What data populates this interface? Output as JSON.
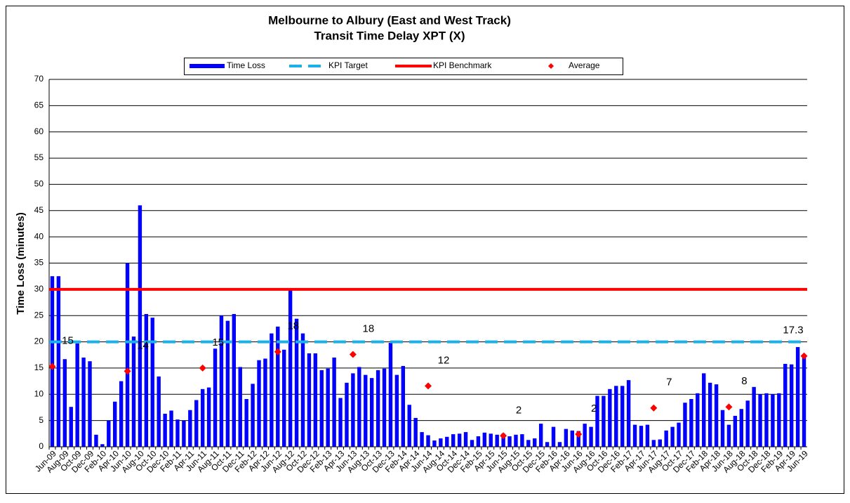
{
  "chart_data": {
    "type": "bar",
    "title": "Melbourne to Albury (East and West Track)",
    "subtitle": "Transit Time Delay XPT  (X)",
    "ylabel": "Time Loss (minutes)",
    "ylim": [
      0,
      70
    ],
    "yticks": [
      0,
      5,
      10,
      15,
      20,
      25,
      30,
      35,
      40,
      45,
      50,
      55,
      60,
      65,
      70
    ],
    "grid": true,
    "legend": "top",
    "categories": [
      "Jun-09",
      null,
      "Aug-09",
      null,
      "Oct-09",
      null,
      "Dec-09",
      null,
      "Feb-10",
      null,
      "Apr-10",
      null,
      "Jun-10",
      null,
      "Aug-10",
      null,
      "Oct-10",
      null,
      "Dec-10",
      null,
      "Feb-11",
      null,
      "Apr-11",
      null,
      "Jun-11",
      null,
      "Aug-11",
      null,
      "Oct-11",
      null,
      "Dec-11",
      null,
      "Feb-12",
      null,
      "Apr-12",
      null,
      "Jun-12",
      null,
      "Aug-12",
      null,
      "Oct-12",
      null,
      "Dec-12",
      null,
      "Feb-13",
      null,
      "Apr-13",
      null,
      "Jun-13",
      null,
      "Aug-13",
      null,
      "Oct-13",
      null,
      "Dec-13",
      null,
      "Feb-14",
      null,
      "Apr-14",
      null,
      "Jun-14",
      null,
      "Aug-14",
      null,
      "Oct-14",
      null,
      "Dec-14",
      null,
      "Feb-15",
      null,
      "Apr-15",
      null,
      "Jun-15",
      null,
      "Aug-15",
      null,
      "Oct-15",
      null,
      "Dec-15",
      null,
      "Feb-16",
      null,
      "Apr-16",
      null,
      "Jun-16",
      null,
      "Aug-16",
      null,
      "Oct-16",
      null,
      "Dec-16",
      null,
      "Feb-17",
      null,
      "Apr-17",
      null,
      "Jun-17",
      null,
      "Aug-17",
      null,
      "Oct-17",
      null,
      "Dec-17",
      null,
      "Feb-18",
      null,
      "Apr-18",
      null,
      "Jun-18",
      null,
      "Aug-18",
      null,
      "Oct-18",
      null,
      "Dec-18",
      null,
      "Feb-19",
      null,
      "Apr-19",
      null,
      "Jun-19"
    ],
    "series": [
      {
        "name": "Time Loss",
        "color": "#0000ff",
        "values": [
          32.5,
          32.5,
          16.7,
          7.6,
          19.7,
          17,
          16.3,
          2.3,
          0.5,
          5,
          8.6,
          12.5,
          35,
          21,
          46,
          25.3,
          24.6,
          13.4,
          6.3,
          6.9,
          5.2,
          5,
          7,
          8.9,
          11,
          11.3,
          18.7,
          25,
          24,
          25.3,
          15.2,
          9.1,
          12,
          16.5,
          16.8,
          21.6,
          22.9,
          18.5,
          30,
          24.4,
          21.6,
          17.8,
          17.8,
          14.6,
          14.9,
          17,
          9.3,
          12.2,
          14,
          15.2,
          13.7,
          13.1,
          14.6,
          14.9,
          19.8,
          13.7,
          15.4,
          8,
          5.5,
          2.8,
          2.2,
          1.2,
          1.6,
          1.9,
          2.4,
          2.5,
          2.8,
          1.3,
          2,
          2.7,
          2.5,
          2.3,
          2.5,
          2,
          2.3,
          2.4,
          1.3,
          1.6,
          4.4,
          0.9,
          3.8,
          0.9,
          3.4,
          3.1,
          3,
          4.4,
          3.8,
          9.7,
          9.7,
          11,
          11.6,
          11.6,
          12.7,
          4.2,
          4,
          4.2,
          1.3,
          1.4,
          3.1,
          3.8,
          4.6,
          8.4,
          9.1,
          10.2,
          14,
          12.2,
          11.9,
          7,
          4.2,
          5.9,
          7.2,
          8.8,
          11.4,
          10,
          10.2,
          10,
          10.2,
          15.8,
          15.7,
          19,
          17.2
        ]
      },
      {
        "name": "Average",
        "color": "#ff0000",
        "values": [
          15.3,
          null,
          null,
          null,
          null,
          null,
          null,
          null,
          null,
          null,
          null,
          null,
          14.4,
          null,
          null,
          null,
          null,
          null,
          null,
          null,
          null,
          null,
          null,
          null,
          15,
          null,
          null,
          null,
          null,
          null,
          null,
          null,
          null,
          null,
          null,
          null,
          18.1,
          null,
          null,
          null,
          null,
          null,
          null,
          null,
          null,
          null,
          null,
          null,
          17.6,
          null,
          null,
          null,
          null,
          null,
          null,
          null,
          null,
          null,
          null,
          null,
          11.6,
          null,
          null,
          null,
          null,
          null,
          null,
          null,
          null,
          null,
          null,
          null,
          2.1,
          null,
          null,
          null,
          null,
          null,
          null,
          null,
          null,
          null,
          null,
          null,
          2.4,
          null,
          null,
          null,
          null,
          null,
          null,
          null,
          null,
          null,
          null,
          null,
          7.4,
          null,
          null,
          null,
          null,
          null,
          null,
          null,
          null,
          null,
          null,
          null,
          7.6,
          null,
          null,
          null,
          null,
          null,
          null,
          null,
          null,
          null,
          null,
          null,
          17.3
        ],
        "value_labels": [
          "15",
          null,
          null,
          null,
          null,
          null,
          null,
          null,
          null,
          null,
          null,
          null,
          "14",
          null,
          null,
          null,
          null,
          null,
          null,
          null,
          null,
          null,
          null,
          null,
          "15",
          null,
          null,
          null,
          null,
          null,
          null,
          null,
          null,
          null,
          null,
          null,
          "18",
          null,
          null,
          null,
          null,
          null,
          null,
          null,
          null,
          null,
          null,
          null,
          "18",
          null,
          null,
          null,
          null,
          null,
          null,
          null,
          null,
          null,
          null,
          null,
          "12",
          null,
          null,
          null,
          null,
          null,
          null,
          null,
          null,
          null,
          null,
          null,
          "2",
          null,
          null,
          null,
          null,
          null,
          null,
          null,
          null,
          null,
          null,
          null,
          "2",
          null,
          null,
          null,
          null,
          null,
          null,
          null,
          null,
          null,
          null,
          null,
          "7",
          null,
          null,
          null,
          null,
          null,
          null,
          null,
          null,
          null,
          null,
          null,
          "8",
          null,
          null,
          null,
          null,
          null,
          null,
          null,
          null,
          null,
          null,
          null,
          "17.3"
        ]
      }
    ],
    "lines": [
      {
        "name": "KPI Target",
        "value": 20,
        "color": "#1ab0e8",
        "dashed": true
      },
      {
        "name": "KPI Benchmark",
        "value": 30,
        "color": "#ff0000",
        "dashed": false
      }
    ]
  }
}
